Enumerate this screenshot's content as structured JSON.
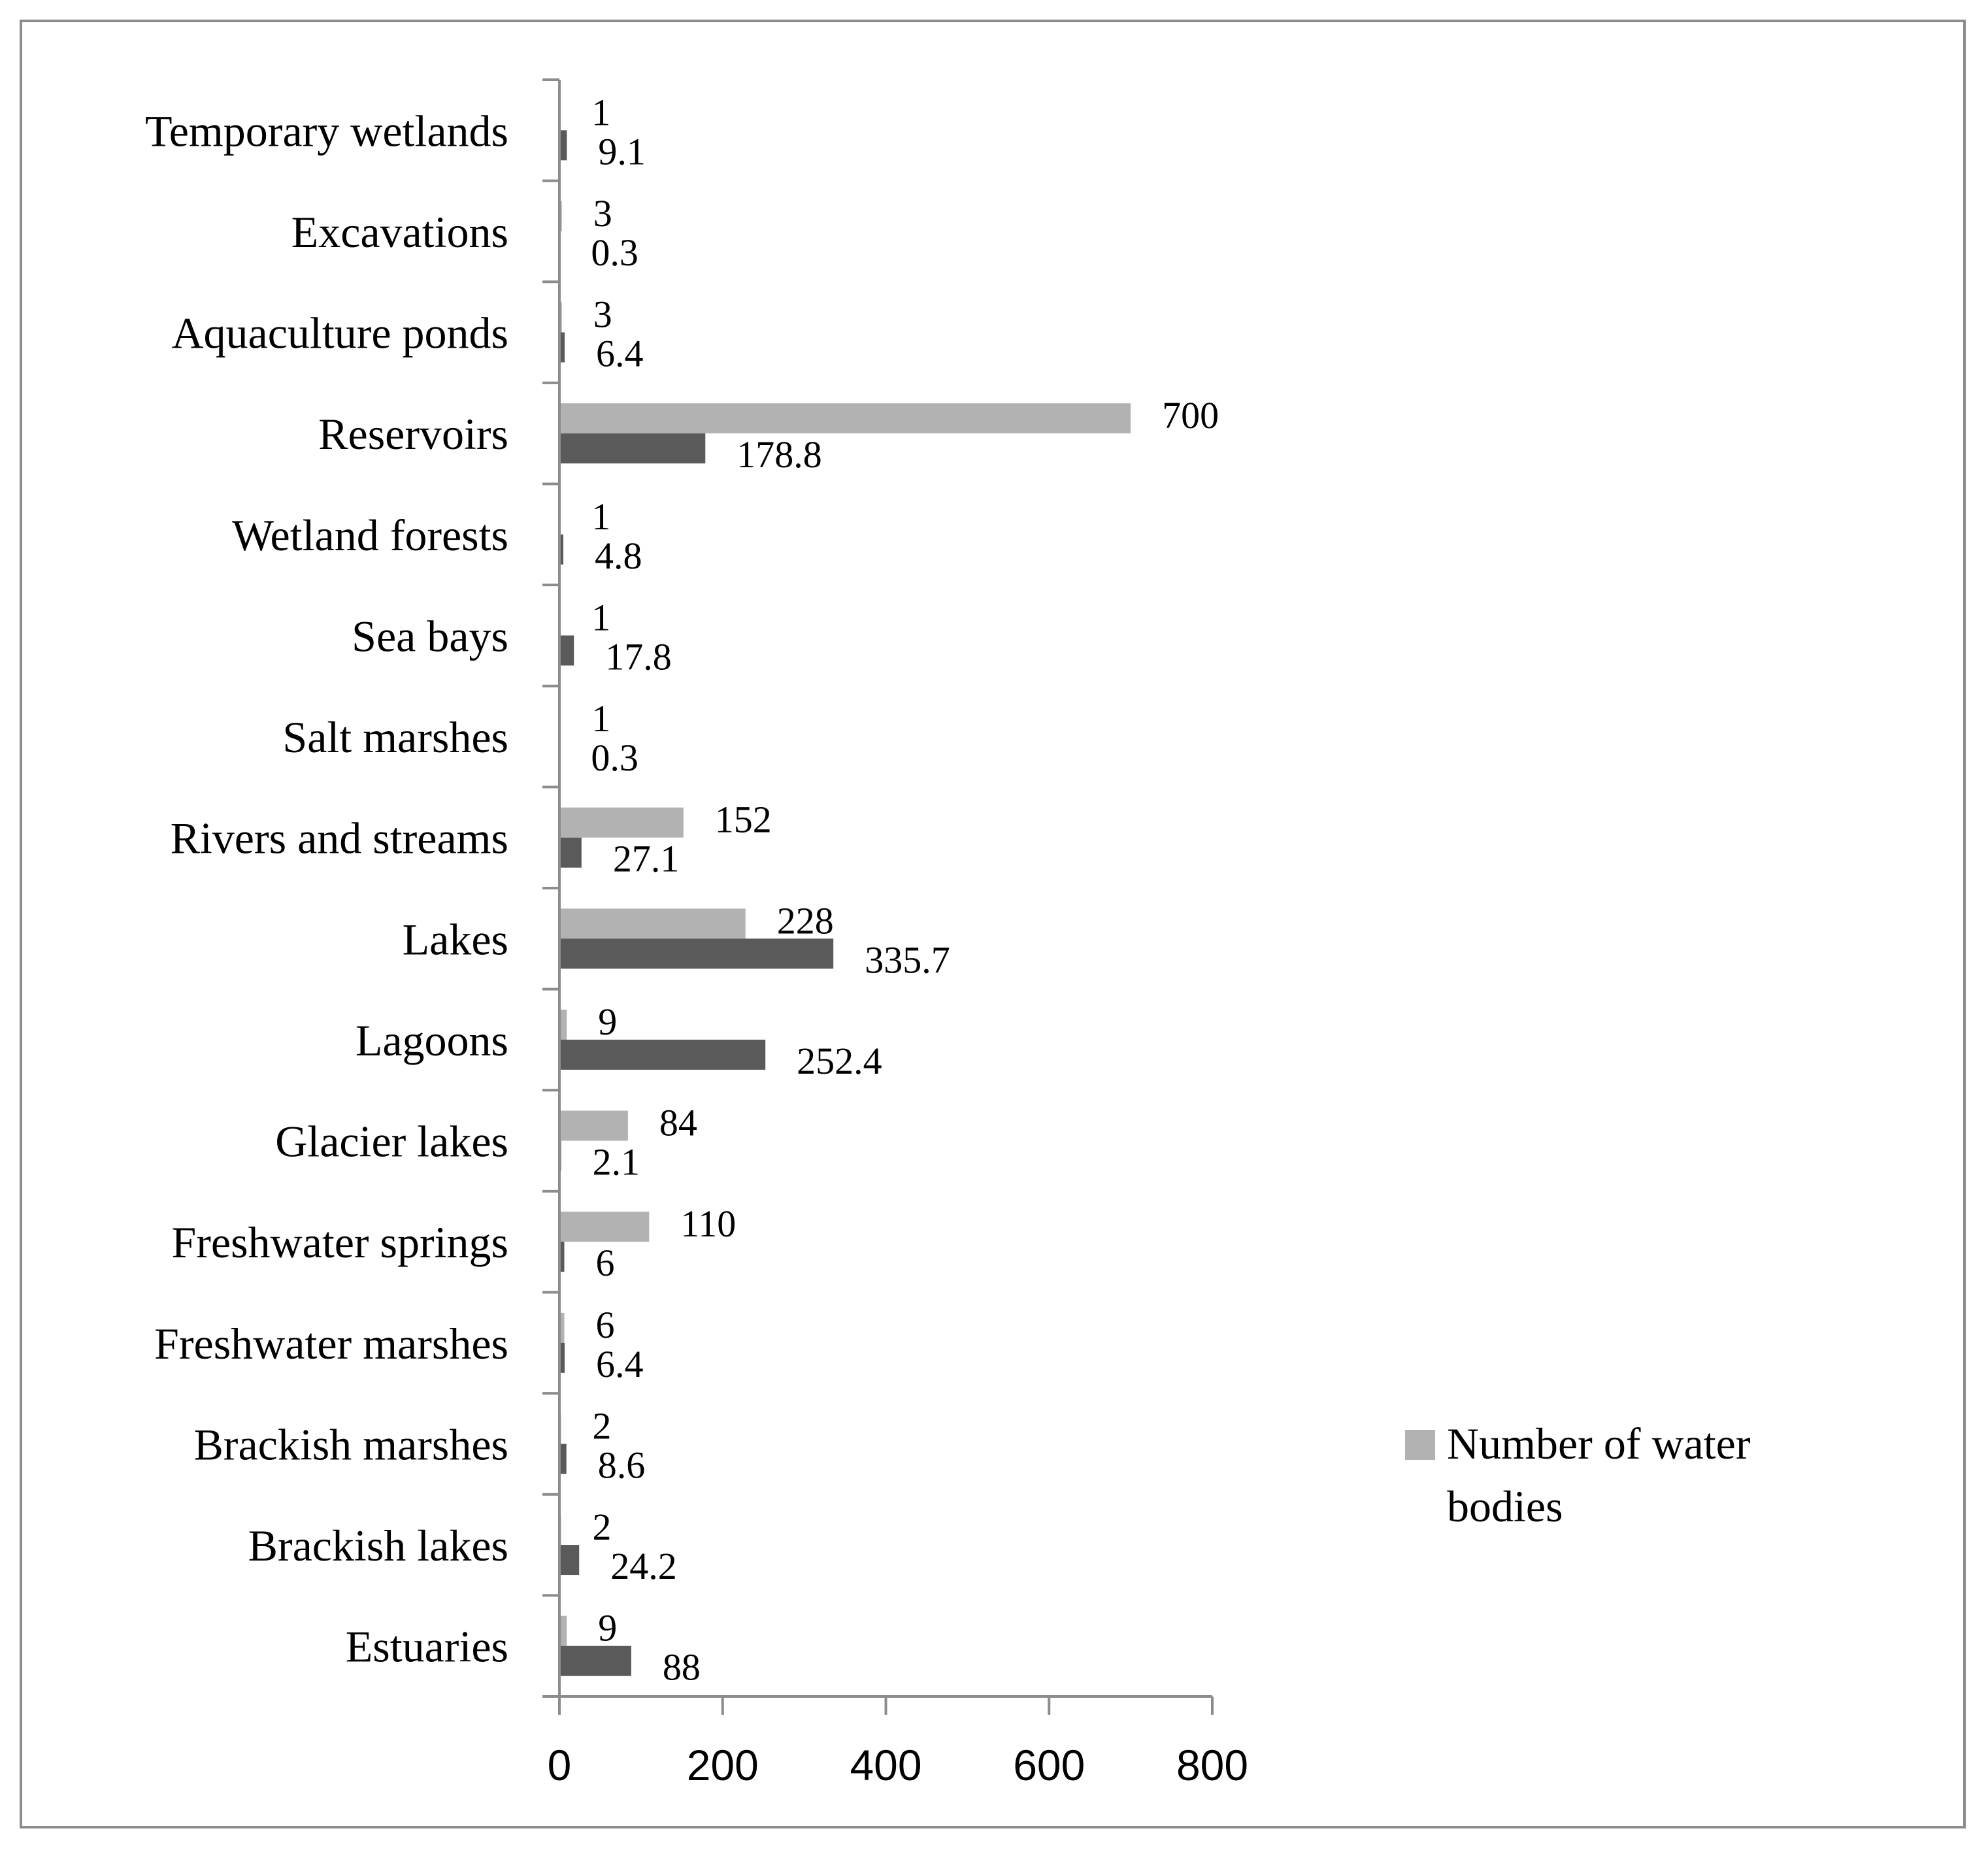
{
  "chart_data": {
    "type": "bar",
    "orientation": "horizontal",
    "title": "",
    "xlabel": "",
    "ylabel": "",
    "xlim": [
      0,
      800
    ],
    "x_ticks": [
      0,
      200,
      400,
      600,
      800
    ],
    "grid": false,
    "legend_position": "right",
    "categories": [
      "Temporary wetlands",
      "Excavations",
      "Aquaculture ponds",
      "Reservoirs",
      "Wetland forests",
      "Sea bays",
      "Salt marshes",
      "Rivers and streams",
      "Lakes",
      "Lagoons",
      "Glacier lakes",
      "Freshwater springs",
      "Freshwater marshes",
      "Brackish marshes",
      "Brackish lakes",
      "Estuaries"
    ],
    "series": [
      {
        "name": "Number of water bodies",
        "color": "#b2b2b2",
        "in_legend": true,
        "values": [
          1,
          3,
          3,
          700,
          1,
          1,
          1,
          152,
          228,
          9,
          84,
          110,
          6,
          2,
          2,
          9
        ],
        "labels": [
          "1",
          "3",
          "3",
          "700",
          "1",
          "1",
          "1",
          "152",
          "228",
          "9",
          "84",
          "110",
          "6",
          "2",
          "2",
          "9"
        ]
      },
      {
        "color": "#5a5a5a",
        "in_legend": false,
        "values": [
          9.1,
          0.3,
          6.4,
          178.8,
          4.8,
          17.8,
          0.3,
          27.1,
          335.7,
          252.4,
          2.1,
          6,
          6.4,
          8.6,
          24.2,
          88
        ],
        "labels": [
          "9.1",
          "0.3",
          "6.4",
          "178.8",
          "4.8",
          "17.8",
          "0.3",
          "27.1",
          "335.7",
          "252.4",
          "2.1",
          "6",
          "6.4",
          "8.6",
          "24.2",
          "88"
        ]
      }
    ]
  }
}
